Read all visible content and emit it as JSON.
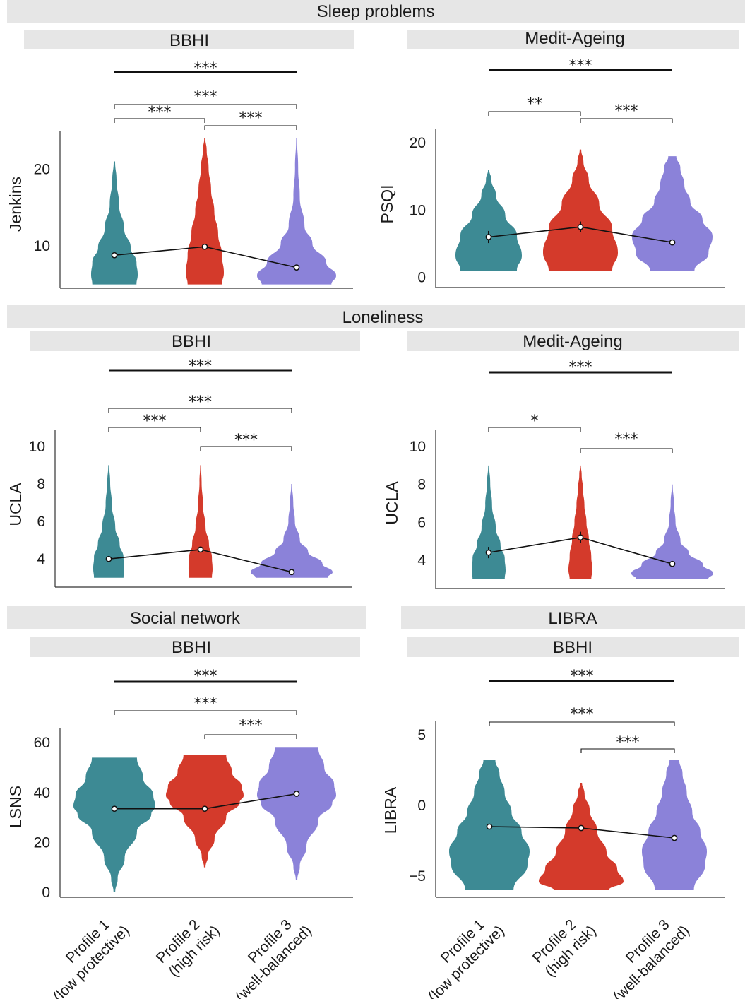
{
  "figure": {
    "section_titles": {
      "sleep": "Sleep problems",
      "loneliness": "Loneliness",
      "social": "Social network",
      "libra": "LIBRA"
    },
    "x_categories": [
      [
        "Profile 1",
        "(low protective)"
      ],
      [
        "Profile 2",
        "(high risk)"
      ],
      [
        "Profile 3",
        "(well-balanced)"
      ]
    ],
    "profile_colors": [
      "#3d8a94",
      "#d43a2b",
      "#8b82d9"
    ]
  },
  "chart_data": [
    {
      "type": "violin",
      "title": "BBHI",
      "ylabel": "Jenkins",
      "ylim": [
        4.5,
        25
      ],
      "yticks": [
        10,
        20
      ],
      "violins": [
        {
          "profile": "Profile 1 (low protective)",
          "min": 5,
          "max": 21,
          "mean": 8.8,
          "ci": 0.2
        },
        {
          "profile": "Profile 2 (high risk)",
          "min": 5,
          "max": 24,
          "mean": 9.9,
          "ci": 0.3
        },
        {
          "profile": "Profile 3 (well-balanced)",
          "min": 5,
          "max": 24,
          "mean": 7.2,
          "ci": 0.2
        }
      ],
      "significance": [
        {
          "from": 1,
          "to": 2,
          "label": "***"
        },
        {
          "from": 2,
          "to": 3,
          "label": "***"
        },
        {
          "from": 1,
          "to": 3,
          "label": "***"
        },
        {
          "overall": true,
          "label": "***"
        }
      ]
    },
    {
      "type": "violin",
      "title": "Medit-Ageing",
      "ylabel": "PSQI",
      "ylim": [
        -1.5,
        22
      ],
      "yticks": [
        0,
        10,
        20
      ],
      "violins": [
        {
          "profile": "Profile 1 (low protective)",
          "min": 1,
          "max": 16,
          "mean": 6.0,
          "ci": 0.9
        },
        {
          "profile": "Profile 2 (high risk)",
          "min": 1,
          "max": 19,
          "mean": 7.5,
          "ci": 0.8
        },
        {
          "profile": "Profile 3 (well-balanced)",
          "min": 1,
          "max": 18,
          "mean": 5.2,
          "ci": 0.4
        }
      ],
      "significance": [
        {
          "from": 1,
          "to": 2,
          "label": "**"
        },
        {
          "from": 2,
          "to": 3,
          "label": "***"
        },
        {
          "overall": true,
          "label": "***"
        }
      ]
    },
    {
      "type": "violin",
      "title": "BBHI",
      "ylabel": "UCLA",
      "ylim": [
        2.5,
        10.9
      ],
      "yticks": [
        4,
        6,
        8,
        10
      ],
      "violins": [
        {
          "profile": "Profile 1 (low protective)",
          "min": 3,
          "max": 9,
          "mean": 4.0,
          "ci": 0.06
        },
        {
          "profile": "Profile 2 (high risk)",
          "min": 3,
          "max": 9,
          "mean": 4.5,
          "ci": 0.1
        },
        {
          "profile": "Profile 3 (well-balanced)",
          "min": 3,
          "max": 8,
          "mean": 3.3,
          "ci": 0.05
        }
      ],
      "significance": [
        {
          "from": 1,
          "to": 2,
          "label": "***"
        },
        {
          "from": 2,
          "to": 3,
          "label": "***"
        },
        {
          "from": 1,
          "to": 3,
          "label": "***"
        },
        {
          "overall": true,
          "label": "***"
        }
      ]
    },
    {
      "type": "violin",
      "title": "Medit-Ageing",
      "ylabel": "UCLA",
      "ylim": [
        2.5,
        10.9
      ],
      "yticks": [
        4,
        6,
        8,
        10
      ],
      "violins": [
        {
          "profile": "Profile 1 (low protective)",
          "min": 3,
          "max": 9,
          "mean": 4.4,
          "ci": 0.3
        },
        {
          "profile": "Profile 2 (high risk)",
          "min": 3,
          "max": 9,
          "mean": 5.2,
          "ci": 0.3
        },
        {
          "profile": "Profile 3 (well-balanced)",
          "min": 3,
          "max": 8,
          "mean": 3.8,
          "ci": 0.12
        }
      ],
      "significance": [
        {
          "from": 1,
          "to": 2,
          "label": "*"
        },
        {
          "from": 2,
          "to": 3,
          "label": "***"
        },
        {
          "overall": true,
          "label": "***"
        }
      ]
    },
    {
      "type": "violin",
      "title": "BBHI",
      "ylabel": "LSNS",
      "ylim": [
        -2,
        66
      ],
      "yticks": [
        0,
        20,
        40,
        60
      ],
      "violins": [
        {
          "profile": "Profile 1 (low protective)",
          "min": 0,
          "max": 54,
          "mean": 33.5,
          "ci": 0.4
        },
        {
          "profile": "Profile 2 (high risk)",
          "min": 10,
          "max": 55,
          "mean": 33.5,
          "ci": 0.5
        },
        {
          "profile": "Profile 3 (well-balanced)",
          "min": 5,
          "max": 58,
          "mean": 39.5,
          "ci": 0.4
        }
      ],
      "significance": [
        {
          "from": 2,
          "to": 3,
          "label": "***"
        },
        {
          "from": 1,
          "to": 3,
          "label": "***"
        },
        {
          "overall": true,
          "label": "***"
        }
      ]
    },
    {
      "type": "violin",
      "title": "BBHI",
      "ylabel": "LIBRA",
      "ylim": [
        -6.5,
        6
      ],
      "yticks": [
        -5,
        0,
        5
      ],
      "violins": [
        {
          "profile": "Profile 1 (low protective)",
          "min": -6,
          "max": 3.2,
          "mean": -1.5,
          "ci": 0.1
        },
        {
          "profile": "Profile 2 (high risk)",
          "min": -6,
          "max": 1.6,
          "mean": -1.6,
          "ci": 0.1
        },
        {
          "profile": "Profile 3 (well-balanced)",
          "min": -6,
          "max": 3.2,
          "mean": -2.3,
          "ci": 0.1
        }
      ],
      "significance": [
        {
          "from": 2,
          "to": 3,
          "label": "***"
        },
        {
          "from": 1,
          "to": 3,
          "label": "***"
        },
        {
          "overall": true,
          "label": "***"
        }
      ]
    }
  ]
}
